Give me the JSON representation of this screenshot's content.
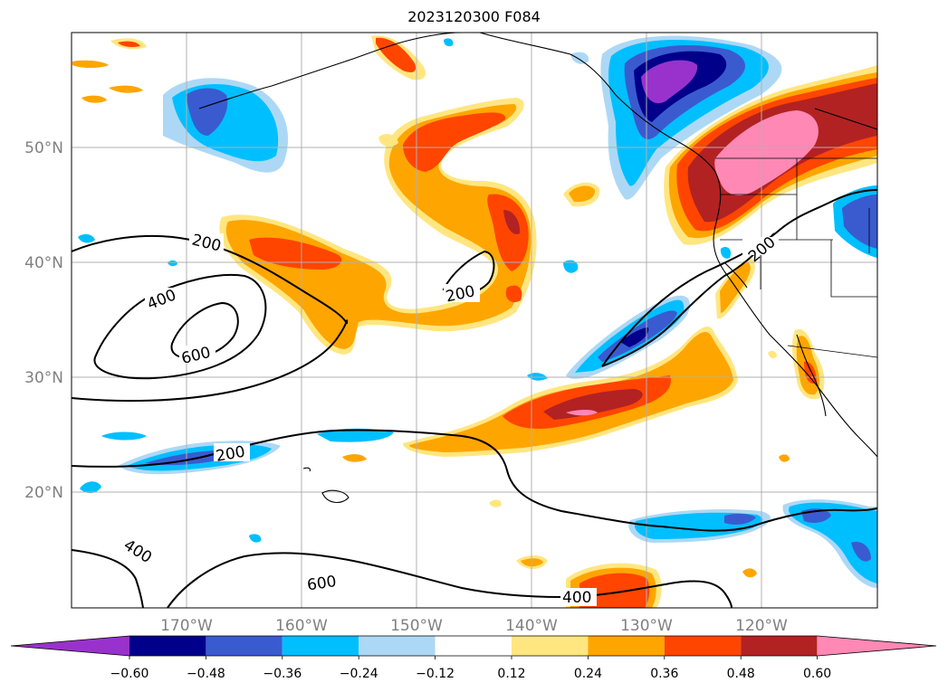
{
  "title": "2023120300 F084",
  "axes": {
    "lat_labels": [
      "50°N",
      "40°N",
      "30°N",
      "20°N"
    ],
    "lon_labels": [
      "170°W",
      "160°W",
      "150°W",
      "140°W",
      "130°W",
      "120°W"
    ]
  },
  "colorbar": {
    "ticks": [
      "−0.60",
      "−0.48",
      "−0.36",
      "−0.24",
      "−0.12",
      "0.12",
      "0.24",
      "0.36",
      "0.48",
      "0.60"
    ],
    "colors": [
      "#9932cc",
      "#00008b",
      "#3a5bd0",
      "#00bfff",
      "#add8f5",
      "#ffffff",
      "#ffe680",
      "#ffa500",
      "#ff4500",
      "#b22222",
      "#ff88b4"
    ]
  },
  "contours": {
    "labels": [
      "200",
      "400",
      "600",
      "200",
      "200",
      "200",
      "400",
      "600",
      "400"
    ]
  }
}
